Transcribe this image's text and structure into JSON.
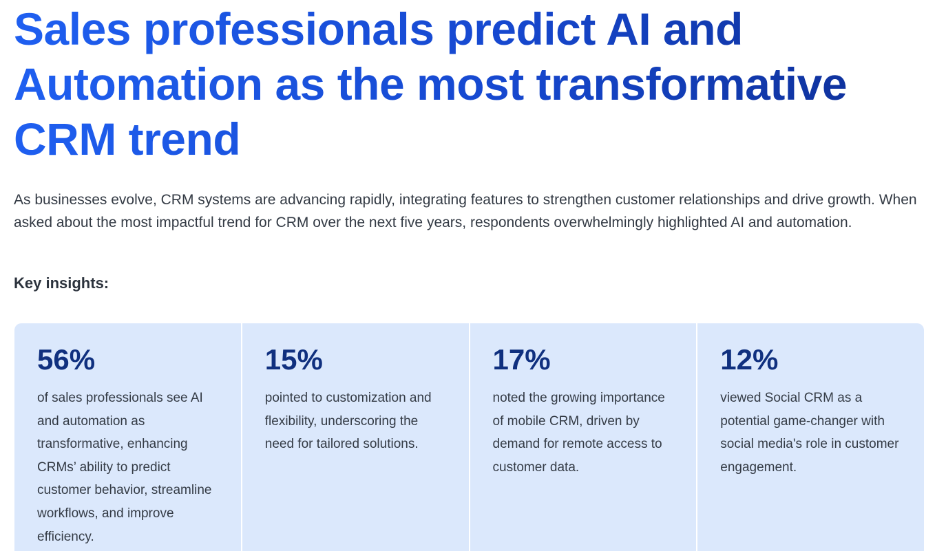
{
  "headline": "Sales professionals predict AI and Automation as the most transformative CRM trend",
  "intro": "As businesses evolve, CRM systems are advancing rapidly, integrating features to strengthen customer relationships and drive growth. When asked about the most impactful trend for CRM over the next five years, respondents overwhelmingly highlighted AI and automation.",
  "insights_heading": "Key insights:",
  "cards": [
    {
      "stat": "56%",
      "text": "of sales professionals see AI and automation as transformative, enhancing CRMs’ ability to predict customer behavior, streamline workflows, and improve efficiency."
    },
    {
      "stat": "15%",
      "text": "pointed to customization and flexibility, underscoring the need for tailored solutions."
    },
    {
      "stat": "17%",
      "text": "noted the growing importance of mobile CRM, driven by demand for remote access to customer data."
    },
    {
      "stat": "12%",
      "text": "viewed Social CRM as a potential game-changer with social media's role in customer engagement."
    }
  ],
  "colors": {
    "headline_blue": "#1f5ff0",
    "headline_navy": "#0e2f96",
    "card_background": "#dbe8fc",
    "stat_color": "#10307f"
  }
}
